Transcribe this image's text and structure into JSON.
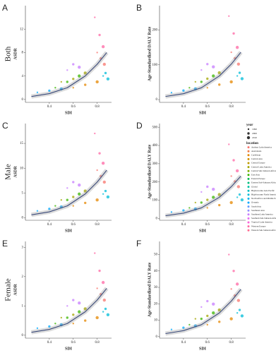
{
  "chart_data": [
    {
      "type": "scatter",
      "letter": "A",
      "row_label": "Both",
      "ylabel": "ASDR",
      "xlabel": "SDI",
      "xlim": [
        0.2,
        0.92
      ],
      "xticks": [
        0.4,
        0.6,
        0.8
      ],
      "ylim": [
        -0.5,
        16
      ],
      "yticks": [
        0,
        4,
        8,
        12
      ],
      "series": [
        {
          "color": "#00a9ff",
          "x": [
            0.3,
            0.4,
            0.5
          ],
          "y": [
            1.2,
            1.5,
            1.8
          ]
        },
        {
          "color": "#39b600",
          "x": [
            0.45,
            0.55,
            0.65
          ],
          "y": [
            2,
            3,
            4
          ]
        },
        {
          "color": "#a3a500",
          "x": [
            0.5,
            0.6,
            0.7
          ],
          "y": [
            3,
            3.5,
            4.5
          ]
        },
        {
          "color": "#e58700",
          "x": [
            0.6,
            0.7,
            0.8
          ],
          "y": [
            2,
            2.5,
            3
          ]
        },
        {
          "color": "#ff67a4",
          "x": [
            0.78,
            0.82,
            0.85
          ],
          "y": [
            14,
            11,
            9
          ]
        },
        {
          "color": "#f8766d",
          "x": [
            0.8,
            0.83,
            0.86
          ],
          "y": [
            8,
            7,
            6
          ]
        },
        {
          "color": "#00bcd8",
          "x": [
            0.85,
            0.87,
            0.89
          ],
          "y": [
            4,
            4.5,
            3.5
          ]
        },
        {
          "color": "#c77cff",
          "x": [
            0.55,
            0.6,
            0.65
          ],
          "y": [
            5,
            6,
            5.5
          ]
        }
      ],
      "trend": {
        "x": [
          0.25,
          0.4,
          0.55,
          0.7,
          0.8,
          0.88
        ],
        "y": [
          0.5,
          1,
          2,
          4,
          6,
          8
        ]
      }
    },
    {
      "type": "scatter",
      "letter": "B",
      "ylabel": "Age-Standardized DALY Rate",
      "xlabel": "SDI",
      "xlim": [
        0.2,
        0.92
      ],
      "xticks": [
        0.4,
        0.6,
        0.8
      ],
      "ylim": [
        -8,
        270
      ],
      "yticks": [
        0,
        100,
        200
      ],
      "series": [
        {
          "color": "#00a9ff",
          "x": [
            0.3,
            0.4,
            0.5
          ],
          "y": [
            20,
            26,
            31
          ]
        },
        {
          "color": "#39b600",
          "x": [
            0.45,
            0.55,
            0.65
          ],
          "y": [
            34,
            51,
            68
          ]
        },
        {
          "color": "#a3a500",
          "x": [
            0.5,
            0.6,
            0.7
          ],
          "y": [
            51,
            60,
            77
          ]
        },
        {
          "color": "#e58700",
          "x": [
            0.6,
            0.7,
            0.8
          ],
          "y": [
            34,
            43,
            51
          ]
        },
        {
          "color": "#ff67a4",
          "x": [
            0.78,
            0.82,
            0.85
          ],
          "y": [
            240,
            190,
            150
          ]
        },
        {
          "color": "#f8766d",
          "x": [
            0.8,
            0.83,
            0.86
          ],
          "y": [
            136,
            119,
            102
          ]
        },
        {
          "color": "#00bcd8",
          "x": [
            0.85,
            0.87,
            0.89
          ],
          "y": [
            68,
            77,
            60
          ]
        },
        {
          "color": "#c77cff",
          "x": [
            0.55,
            0.6,
            0.65
          ],
          "y": [
            85,
            102,
            94
          ]
        }
      ],
      "trend": {
        "x": [
          0.25,
          0.4,
          0.55,
          0.7,
          0.8,
          0.88
        ],
        "y": [
          9,
          17,
          34,
          68,
          102,
          136
        ]
      }
    },
    {
      "type": "scatter",
      "letter": "C",
      "row_label": "Male",
      "ylabel": "ASDR",
      "xlabel": "SDI",
      "xlim": [
        0.2,
        0.92
      ],
      "xticks": [
        0.4,
        0.6,
        0.8
      ],
      "ylim": [
        -0.5,
        19
      ],
      "yticks": [
        0,
        5,
        10,
        15
      ],
      "series": [
        {
          "color": "#00a9ff",
          "x": [
            0.3,
            0.4,
            0.5
          ],
          "y": [
            1.4,
            1.8,
            2.2
          ]
        },
        {
          "color": "#39b600",
          "x": [
            0.45,
            0.55,
            0.65
          ],
          "y": [
            2.4,
            3.6,
            4.8
          ]
        },
        {
          "color": "#a3a500",
          "x": [
            0.5,
            0.6,
            0.7
          ],
          "y": [
            3.6,
            4.2,
            5.4
          ]
        },
        {
          "color": "#e58700",
          "x": [
            0.6,
            0.7,
            0.8
          ],
          "y": [
            2.4,
            3,
            3.6
          ]
        },
        {
          "color": "#ff67a4",
          "x": [
            0.78,
            0.82,
            0.85
          ],
          "y": [
            17,
            13,
            11
          ]
        },
        {
          "color": "#f8766d",
          "x": [
            0.8,
            0.83,
            0.86
          ],
          "y": [
            9.6,
            8.4,
            7.2
          ]
        },
        {
          "color": "#00bcd8",
          "x": [
            0.85,
            0.87,
            0.89
          ],
          "y": [
            4.8,
            5.4,
            4.2
          ]
        },
        {
          "color": "#c77cff",
          "x": [
            0.55,
            0.6,
            0.65
          ],
          "y": [
            6,
            7.2,
            6.6
          ]
        }
      ],
      "trend": {
        "x": [
          0.25,
          0.4,
          0.55,
          0.7,
          0.8,
          0.88
        ],
        "y": [
          0.6,
          1.2,
          2.4,
          4.8,
          7.2,
          9.6
        ]
      }
    },
    {
      "type": "scatter",
      "letter": "D",
      "ylabel": "Age-Standardized DALY Rate",
      "xlabel": "SDI",
      "xlim": [
        0.2,
        0.92
      ],
      "xticks": [
        0.4,
        0.6,
        0.8
      ],
      "ylim": [
        -10,
        520
      ],
      "yticks": [
        0,
        100,
        200,
        300,
        400,
        500
      ],
      "series": [
        {
          "color": "#00a9ff",
          "x": [
            0.3,
            0.4,
            0.5
          ],
          "y": [
            35,
            44,
            52
          ]
        },
        {
          "color": "#39b600",
          "x": [
            0.45,
            0.55,
            0.65
          ],
          "y": [
            58,
            87,
            116
          ]
        },
        {
          "color": "#a3a500",
          "x": [
            0.5,
            0.6,
            0.7
          ],
          "y": [
            87,
            102,
            131
          ]
        },
        {
          "color": "#e58700",
          "x": [
            0.6,
            0.7,
            0.8
          ],
          "y": [
            58,
            73,
            87
          ]
        },
        {
          "color": "#ff67a4",
          "x": [
            0.78,
            0.82,
            0.85
          ],
          "y": [
            406,
            319,
            261
          ]
        },
        {
          "color": "#f8766d",
          "x": [
            0.8,
            0.83,
            0.86
          ],
          "y": [
            232,
            203,
            174
          ]
        },
        {
          "color": "#00bcd8",
          "x": [
            0.85,
            0.87,
            0.89
          ],
          "y": [
            116,
            131,
            102
          ]
        },
        {
          "color": "#c77cff",
          "x": [
            0.55,
            0.6,
            0.65
          ],
          "y": [
            145,
            174,
            160
          ]
        }
      ],
      "trend": {
        "x": [
          0.25,
          0.4,
          0.55,
          0.7,
          0.8,
          0.88
        ],
        "y": [
          15,
          29,
          58,
          116,
          174,
          232
        ]
      },
      "legend": {
        "year_title": "year",
        "years": [
          1990,
          2000,
          2010
        ],
        "location_title": "location",
        "locations": [
          {
            "name": "Andean Latin America",
            "color": "#f8766d"
          },
          {
            "name": "Australasia",
            "color": "#ef7f49"
          },
          {
            "name": "Caribbean",
            "color": "#e58700"
          },
          {
            "name": "Central Asia",
            "color": "#d59100"
          },
          {
            "name": "Central Europe",
            "color": "#c09b00"
          },
          {
            "name": "Central Latin America",
            "color": "#a3a500"
          },
          {
            "name": "Central Sub-Saharan Africa",
            "color": "#7cae00"
          },
          {
            "name": "East Asia",
            "color": "#39b600"
          },
          {
            "name": "Eastern Europe",
            "color": "#00bb4e"
          },
          {
            "name": "Eastern Sub-Saharan Africa",
            "color": "#00bf7d"
          },
          {
            "name": "Global",
            "color": "#00c1a3"
          },
          {
            "name": "High-income Asia Pacific",
            "color": "#00bfc4"
          },
          {
            "name": "High-income North America",
            "color": "#00bcd8"
          },
          {
            "name": "North Africa and Middle East",
            "color": "#00b4ef"
          },
          {
            "name": "Oceania",
            "color": "#00a9ff"
          },
          {
            "name": "South Asia",
            "color": "#619cff"
          },
          {
            "name": "Southeast Asia",
            "color": "#9590ff"
          },
          {
            "name": "Southern Latin America",
            "color": "#c77cff"
          },
          {
            "name": "Southern Sub-Saharan Africa",
            "color": "#e76bf3"
          },
          {
            "name": "Tropical Latin America",
            "color": "#fa62db"
          },
          {
            "name": "Western Europe",
            "color": "#ff67a4"
          },
          {
            "name": "Western Sub-Saharan Africa",
            "color": "#ff6c91"
          }
        ]
      }
    },
    {
      "type": "scatter",
      "letter": "E",
      "row_label": "Female",
      "ylabel": "ASDR",
      "xlabel": "SDI",
      "xlim": [
        0.2,
        0.92
      ],
      "xticks": [
        0.4,
        0.6,
        0.8
      ],
      "ylim": [
        -0.1,
        3.2
      ],
      "yticks": [
        0,
        1,
        2,
        3
      ],
      "series": [
        {
          "color": "#00a9ff",
          "x": [
            0.3,
            0.4,
            0.5
          ],
          "y": [
            0.24,
            0.3,
            0.36
          ]
        },
        {
          "color": "#39b600",
          "x": [
            0.45,
            0.55,
            0.65
          ],
          "y": [
            0.4,
            0.6,
            0.8
          ]
        },
        {
          "color": "#a3a500",
          "x": [
            0.5,
            0.6,
            0.7
          ],
          "y": [
            0.6,
            0.7,
            0.9
          ]
        },
        {
          "color": "#e58700",
          "x": [
            0.6,
            0.7,
            0.8
          ],
          "y": [
            0.4,
            0.5,
            0.6
          ]
        },
        {
          "color": "#ff67a4",
          "x": [
            0.78,
            0.82,
            0.85
          ],
          "y": [
            2.8,
            2.2,
            1.8
          ]
        },
        {
          "color": "#f8766d",
          "x": [
            0.8,
            0.83,
            0.86
          ],
          "y": [
            1.6,
            1.4,
            1.2
          ]
        },
        {
          "color": "#00bcd8",
          "x": [
            0.85,
            0.87,
            0.89
          ],
          "y": [
            0.8,
            0.9,
            0.7
          ]
        },
        {
          "color": "#c77cff",
          "x": [
            0.55,
            0.6,
            0.65
          ],
          "y": [
            1,
            1.2,
            1.1
          ]
        }
      ],
      "trend": {
        "x": [
          0.25,
          0.4,
          0.55,
          0.7,
          0.8,
          0.88
        ],
        "y": [
          0.1,
          0.2,
          0.4,
          0.8,
          1.2,
          1.6
        ]
      }
    },
    {
      "type": "scatter",
      "letter": "F",
      "ylabel": "Age-Standardized DALY Rate",
      "xlabel": "SDI",
      "xlim": [
        0.2,
        0.92
      ],
      "xticks": [
        0.4,
        0.6,
        0.8
      ],
      "ylim": [
        -1,
        58
      ],
      "yticks": [
        0,
        10,
        20,
        30,
        40,
        50
      ],
      "series": [
        {
          "color": "#00a9ff",
          "x": [
            0.3,
            0.4,
            0.5
          ],
          "y": [
            4.3,
            5.4,
            6.5
          ]
        },
        {
          "color": "#39b600",
          "x": [
            0.45,
            0.55,
            0.65
          ],
          "y": [
            7.2,
            10.8,
            14.4
          ]
        },
        {
          "color": "#a3a500",
          "x": [
            0.5,
            0.6,
            0.7
          ],
          "y": [
            10.8,
            12.6,
            16.2
          ]
        },
        {
          "color": "#e58700",
          "x": [
            0.6,
            0.7,
            0.8
          ],
          "y": [
            7.2,
            9,
            10.8
          ]
        },
        {
          "color": "#ff67a4",
          "x": [
            0.78,
            0.82,
            0.85
          ],
          "y": [
            50,
            40,
            32
          ]
        },
        {
          "color": "#f8766d",
          "x": [
            0.8,
            0.83,
            0.86
          ],
          "y": [
            29,
            25,
            22
          ]
        },
        {
          "color": "#00bcd8",
          "x": [
            0.85,
            0.87,
            0.89
          ],
          "y": [
            14.4,
            16.2,
            12.6
          ]
        },
        {
          "color": "#c77cff",
          "x": [
            0.55,
            0.6,
            0.65
          ],
          "y": [
            18,
            21.6,
            19.8
          ]
        }
      ],
      "trend": {
        "x": [
          0.25,
          0.4,
          0.55,
          0.7,
          0.8,
          0.88
        ],
        "y": [
          1.8,
          3.6,
          7.2,
          14.4,
          21.6,
          28.8
        ]
      }
    }
  ]
}
